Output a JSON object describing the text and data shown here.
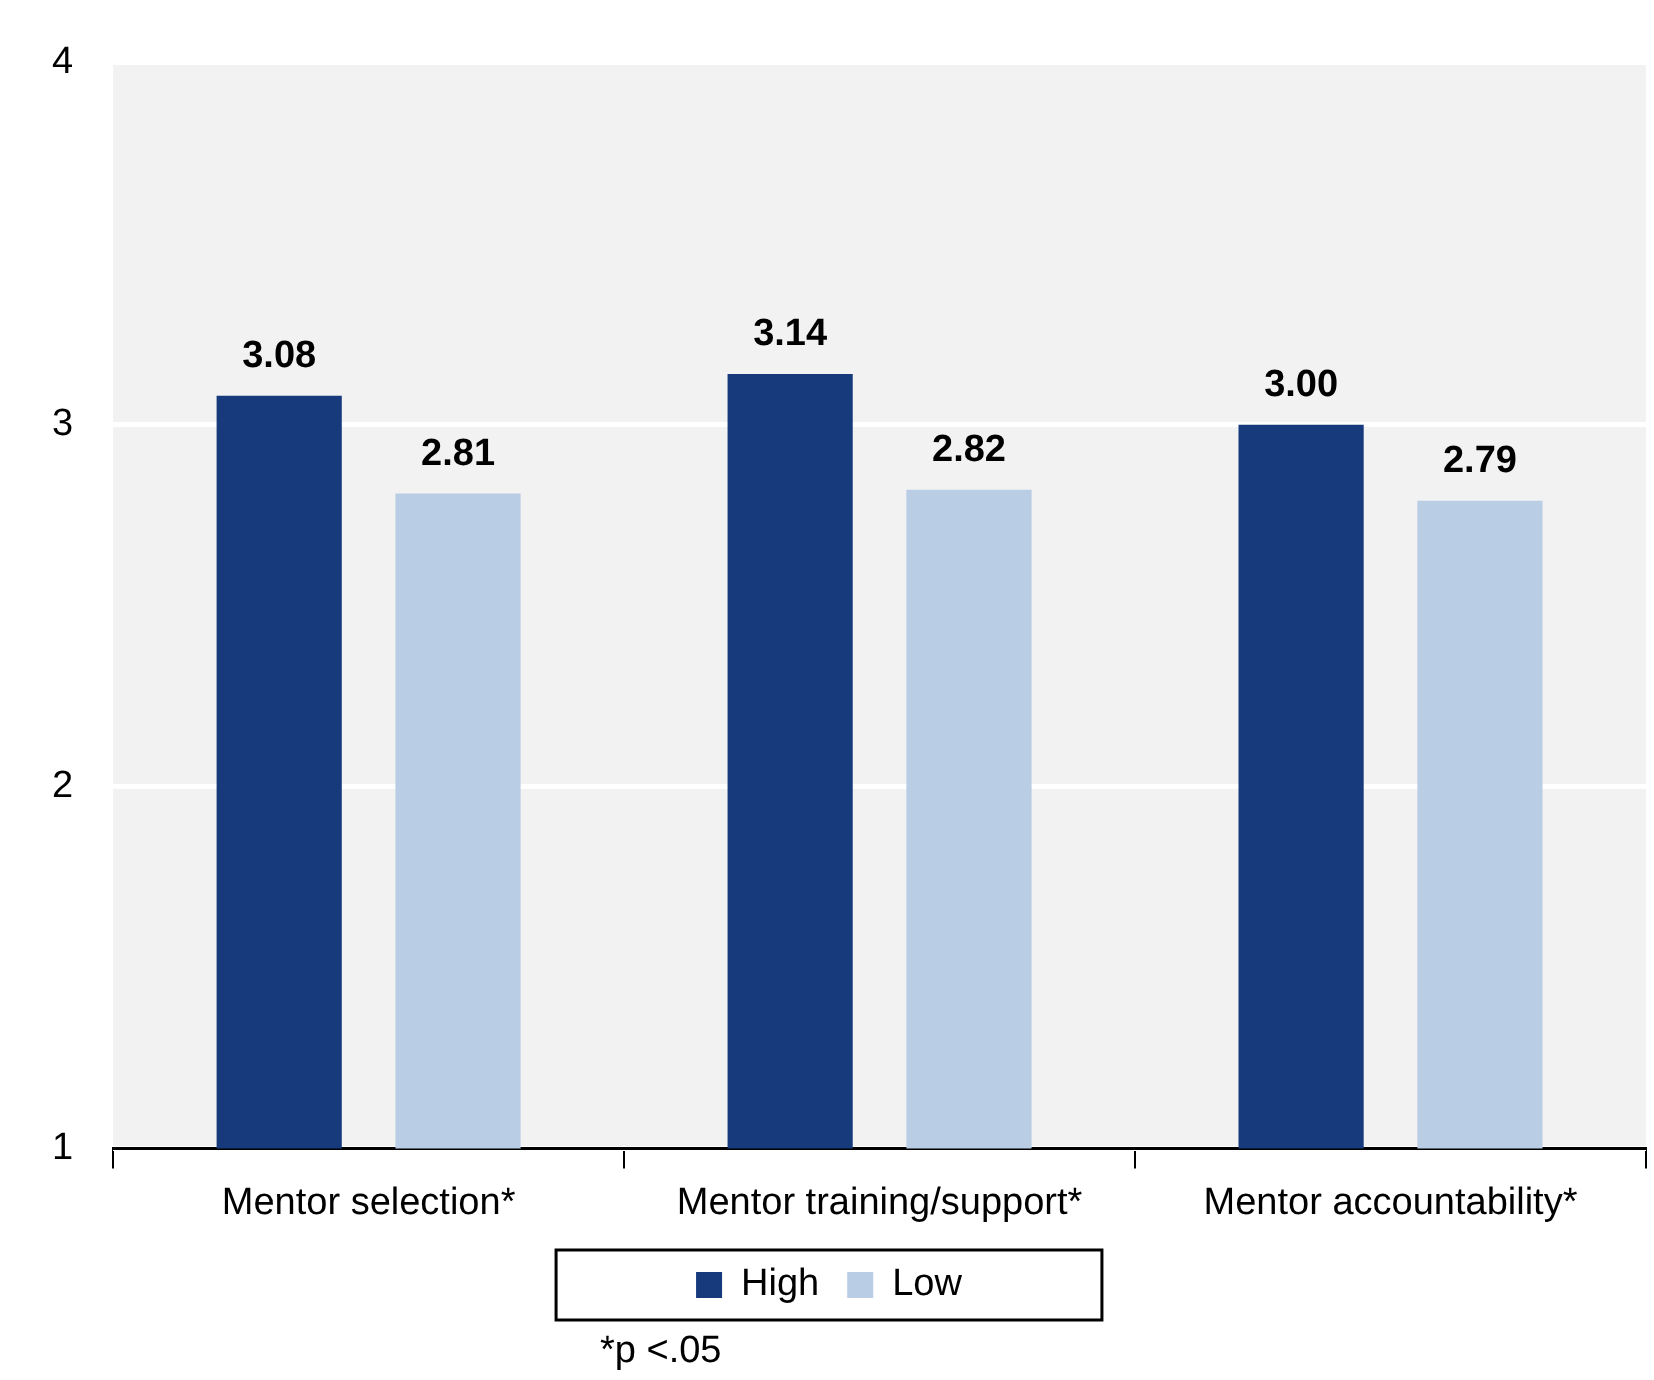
{
  "chart_data": {
    "type": "bar",
    "categories": [
      "Mentor selection*",
      "Mentor training/support*",
      "Mentor accountability*"
    ],
    "series": [
      {
        "name": "High",
        "color": "#163a7c",
        "values": [
          3.08,
          3.14,
          3.0
        ],
        "value_labels": [
          "3.08",
          "3.14",
          "3.00"
        ]
      },
      {
        "name": "Low",
        "color": "#b9cde5",
        "values": [
          2.81,
          2.82,
          2.79
        ],
        "value_labels": [
          "2.81",
          "2.82",
          "2.79"
        ]
      }
    ],
    "ylim": [
      1,
      4
    ],
    "yticks": [
      1,
      2,
      3,
      4
    ],
    "grid": "y",
    "legend": "bottom",
    "annotations": [
      "*p <.05"
    ]
  }
}
